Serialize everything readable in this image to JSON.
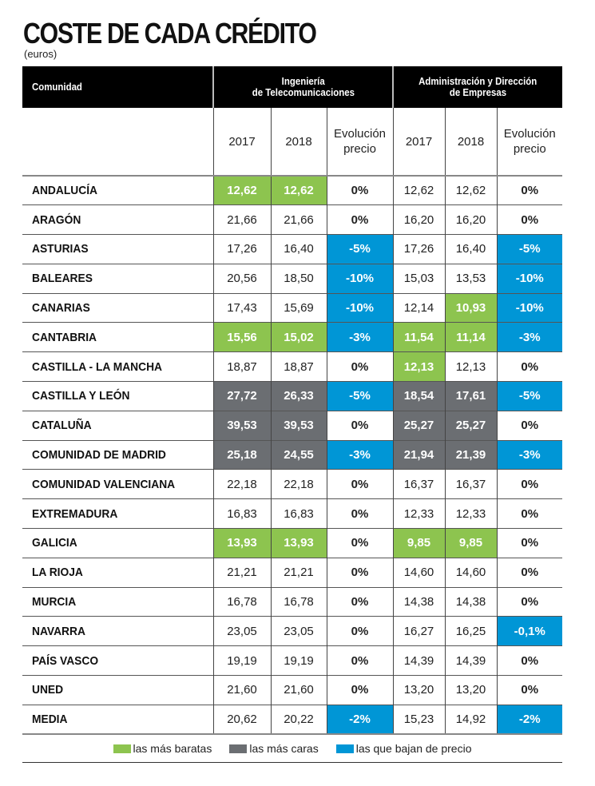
{
  "title": "COSTE DE CADA CRÉDITO",
  "subtitle": "(euros)",
  "header": {
    "comunidad": "Comunidad",
    "group1": {
      "line1": "Ingeniería",
      "line2": "de Telecomunicaciones"
    },
    "group2": {
      "line1": "Administración y Dirección",
      "line2": "de Empresas"
    },
    "sub": {
      "y2017": "2017",
      "y2018": "2018",
      "evol_line1": "Evolución",
      "evol_line2": "precio"
    }
  },
  "colors": {
    "cheap": "#8dc44f",
    "expensive": "#6b6e72",
    "down": "#0096d6",
    "header_bg": "#000000"
  },
  "rows": [
    {
      "name": "ANDALUCÍA",
      "tel2017": "12,62",
      "tel2018": "12,62",
      "telEvol": "0%",
      "ade2017": "12,62",
      "ade2018": "12,62",
      "adeEvol": "0%",
      "hl": [
        "cheap",
        "cheap",
        "",
        "",
        "",
        ""
      ]
    },
    {
      "name": "ARAGÓN",
      "tel2017": "21,66",
      "tel2018": "21,66",
      "telEvol": "0%",
      "ade2017": "16,20",
      "ade2018": "16,20",
      "adeEvol": "0%",
      "hl": [
        "",
        "",
        "",
        "",
        "",
        ""
      ]
    },
    {
      "name": "ASTURIAS",
      "tel2017": "17,26",
      "tel2018": "16,40",
      "telEvol": "-5%",
      "ade2017": "17,26",
      "ade2018": "16,40",
      "adeEvol": "-5%",
      "hl": [
        "",
        "",
        "down",
        "",
        "",
        "down"
      ]
    },
    {
      "name": "BALEARES",
      "tel2017": "20,56",
      "tel2018": "18,50",
      "telEvol": "-10%",
      "ade2017": "15,03",
      "ade2018": "13,53",
      "adeEvol": "-10%",
      "hl": [
        "",
        "",
        "down",
        "",
        "",
        "down"
      ]
    },
    {
      "name": "CANARIAS",
      "tel2017": "17,43",
      "tel2018": "15,69",
      "telEvol": "-10%",
      "ade2017": "12,14",
      "ade2018": "10,93",
      "adeEvol": "-10%",
      "hl": [
        "",
        "",
        "down",
        "",
        "cheap",
        "down"
      ]
    },
    {
      "name": "CANTABRIA",
      "tel2017": "15,56",
      "tel2018": "15,02",
      "telEvol": "-3%",
      "ade2017": "11,54",
      "ade2018": "11,14",
      "adeEvol": "-3%",
      "hl": [
        "cheap",
        "cheap",
        "down",
        "cheap",
        "cheap",
        "down"
      ]
    },
    {
      "name": "CASTILLA - LA MANCHA",
      "tel2017": "18,87",
      "tel2018": "18,87",
      "telEvol": "0%",
      "ade2017": "12,13",
      "ade2018": "12,13",
      "adeEvol": "0%",
      "hl": [
        "",
        "",
        "",
        "cheap",
        "",
        ""
      ]
    },
    {
      "name": "CASTILLA Y LEÓN",
      "tel2017": "27,72",
      "tel2018": "26,33",
      "telEvol": "-5%",
      "ade2017": "18,54",
      "ade2018": "17,61",
      "adeEvol": "-5%",
      "hl": [
        "expensive",
        "expensive",
        "down",
        "expensive",
        "expensive",
        "down"
      ]
    },
    {
      "name": "CATALUÑA",
      "tel2017": "39,53",
      "tel2018": "39,53",
      "telEvol": "0%",
      "ade2017": "25,27",
      "ade2018": "25,27",
      "adeEvol": "0%",
      "hl": [
        "expensive",
        "expensive",
        "",
        "expensive",
        "expensive",
        ""
      ]
    },
    {
      "name": "COMUNIDAD DE MADRID",
      "tel2017": "25,18",
      "tel2018": "24,55",
      "telEvol": "-3%",
      "ade2017": "21,94",
      "ade2018": "21,39",
      "adeEvol": "-3%",
      "hl": [
        "expensive",
        "expensive",
        "down",
        "expensive",
        "expensive",
        "down"
      ]
    },
    {
      "name": "COMUNIDAD VALENCIANA",
      "tel2017": "22,18",
      "tel2018": "22,18",
      "telEvol": "0%",
      "ade2017": "16,37",
      "ade2018": "16,37",
      "adeEvol": "0%",
      "hl": [
        "",
        "",
        "",
        "",
        "",
        ""
      ]
    },
    {
      "name": "EXTREMADURA",
      "tel2017": "16,83",
      "tel2018": "16,83",
      "telEvol": "0%",
      "ade2017": "12,33",
      "ade2018": "12,33",
      "adeEvol": "0%",
      "hl": [
        "",
        "",
        "",
        "",
        "",
        ""
      ]
    },
    {
      "name": "GALICIA",
      "tel2017": "13,93",
      "tel2018": "13,93",
      "telEvol": "0%",
      "ade2017": "9,85",
      "ade2018": "9,85",
      "adeEvol": "0%",
      "hl": [
        "cheap",
        "cheap",
        "",
        "cheap",
        "cheap",
        ""
      ]
    },
    {
      "name": "LA RIOJA",
      "tel2017": "21,21",
      "tel2018": "21,21",
      "telEvol": "0%",
      "ade2017": "14,60",
      "ade2018": "14,60",
      "adeEvol": "0%",
      "hl": [
        "",
        "",
        "",
        "",
        "",
        ""
      ]
    },
    {
      "name": "MURCIA",
      "tel2017": "16,78",
      "tel2018": "16,78",
      "telEvol": "0%",
      "ade2017": "14,38",
      "ade2018": "14,38",
      "adeEvol": "0%",
      "hl": [
        "",
        "",
        "",
        "",
        "",
        ""
      ]
    },
    {
      "name": "NAVARRA",
      "tel2017": "23,05",
      "tel2018": "23,05",
      "telEvol": "0%",
      "ade2017": "16,27",
      "ade2018": "16,25",
      "adeEvol": "-0,1%",
      "hl": [
        "",
        "",
        "",
        "",
        "",
        "down"
      ]
    },
    {
      "name": "PAÍS VASCO",
      "tel2017": "19,19",
      "tel2018": "19,19",
      "telEvol": "0%",
      "ade2017": "14,39",
      "ade2018": "14,39",
      "adeEvol": "0%",
      "hl": [
        "",
        "",
        "",
        "",
        "",
        ""
      ]
    },
    {
      "name": "UNED",
      "tel2017": "21,60",
      "tel2018": "21,60",
      "telEvol": "0%",
      "ade2017": "13,20",
      "ade2018": "13,20",
      "adeEvol": "0%",
      "hl": [
        "",
        "",
        "",
        "",
        "",
        ""
      ]
    },
    {
      "name": "MEDIA",
      "tel2017": "20,62",
      "tel2018": "20,22",
      "telEvol": "-2%",
      "ade2017": "15,23",
      "ade2018": "14,92",
      "adeEvol": "-2%",
      "hl": [
        "",
        "",
        "down",
        "",
        "",
        "down"
      ]
    }
  ],
  "legend": [
    {
      "label": "las más baratas",
      "color": "#8dc44f"
    },
    {
      "label": "las más caras",
      "color": "#6b6e72"
    },
    {
      "label": "las que bajan de precio",
      "color": "#0096d6"
    }
  ]
}
